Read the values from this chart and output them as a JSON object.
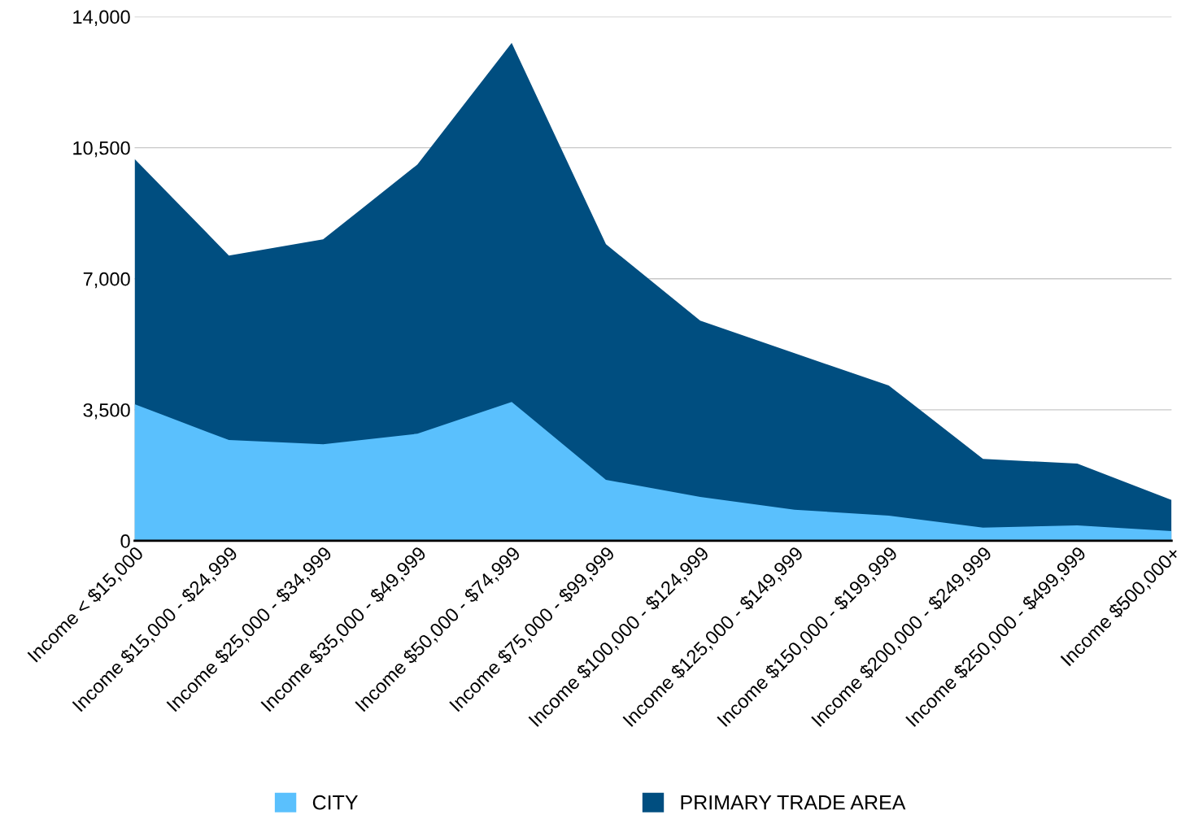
{
  "chart_data": {
    "type": "area",
    "categories": [
      "Income < $15,000",
      "Income $15,000 - $24,999",
      "Income $25,000 - $34,999",
      "Income $35,000 - $49,999",
      "Income $50,000 - $74,999",
      "Income $75,000 - $99,999",
      "Income $100,000 - $124,999",
      "Income $125,000 - $149,999",
      "Income $150,000 - $199,999",
      "Income $200,000 - $249,999",
      "Income $250,000 - $499,999",
      "Income $500,000+"
    ],
    "series": [
      {
        "name": "CITY",
        "color": "#5ac0fd",
        "values": [
          3650,
          2690,
          2580,
          2860,
          3710,
          1630,
          1170,
          830,
          670,
          350,
          410,
          260
        ]
      },
      {
        "name": "PRIMARY TRADE AREA",
        "color": "#004e80",
        "values": [
          10200,
          7620,
          8050,
          10050,
          13300,
          7920,
          5880,
          5010,
          4150,
          2190,
          2060,
          1090
        ]
      }
    ],
    "ylim": [
      0,
      14000
    ],
    "yticks": [
      0,
      {
        "value": 3500,
        "label": "3,500"
      },
      {
        "value": 7000,
        "label": "7,000"
      },
      {
        "value": 10500,
        "label": "10,500"
      },
      {
        "value": 14000,
        "label": "14,000"
      }
    ],
    "grid": "y",
    "legend": "bottom"
  }
}
